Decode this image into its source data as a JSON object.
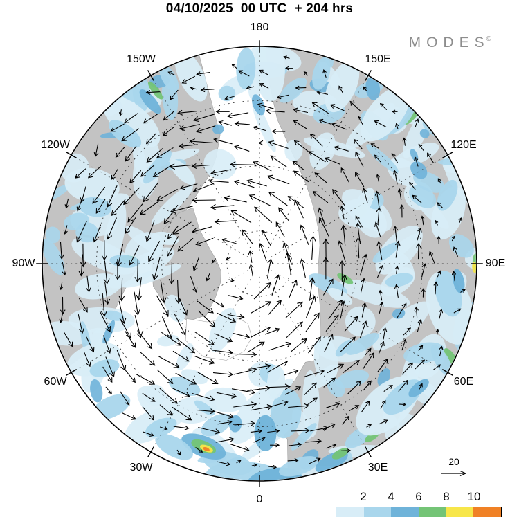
{
  "header": {
    "title": "04/10/2025  00 UTC  + 204 hrs",
    "brand": "MODES",
    "brand_mark": "©"
  },
  "map": {
    "longitude_labels": [
      "180",
      "150E",
      "120E",
      "90E",
      "60E",
      "30E",
      "0",
      "30W",
      "60W",
      "90W",
      "120W",
      "150W"
    ],
    "land_color": "#c3c3c3",
    "ocean_color": "#ffffff",
    "graticule_color": "#222222",
    "arrow_color": "#000000"
  },
  "legend": {
    "reference_arrow_label": "20",
    "colorbar_ticks": [
      "2",
      "4",
      "6",
      "8",
      "10"
    ],
    "colorbar_colors": [
      "#d8edf7",
      "#a9d6ec",
      "#6fb3d9",
      "#74c476",
      "#f7e64a",
      "#f08125"
    ]
  },
  "chart_data": {
    "type": "heatmap",
    "title": "04/10/2025 00 UTC + 204 hrs",
    "source_logo": "MODES",
    "projection": "north polar stereographic; 0 longitude at bottom, 180 at top, east longitudes clockwise",
    "longitude_ring_labels": [
      "180",
      "150E",
      "120E",
      "90E",
      "60E",
      "30E",
      "0",
      "30W",
      "60W",
      "90W",
      "120W",
      "150W"
    ],
    "overlays": [
      "shaded scalar field (levels per colorbar)",
      "wind vector arrows",
      "gray land mask",
      "dashed graticule every 30 degrees longitude and at three latitude circles"
    ],
    "colorbar": {
      "ticks": [
        2,
        4,
        6,
        8,
        10
      ],
      "colors": [
        "#d8edf7",
        "#a9d6ec",
        "#6fb3d9",
        "#74c476",
        "#f7e64a",
        "#f08125"
      ],
      "position": "bottom-right, partially clipped at image edge"
    },
    "reference_vector": {
      "value": 20,
      "position": "above colorbar, right side"
    },
    "notable_features": [
      "large cyclonic (counterclockwise) vortex of long arrows centered left of the pole (~90W-120W sector)",
      "strongest shading maxima (green/yellow/orange) near the bottom outer rim around 30W-30E",
      "scattered light-blue shading over mid-latitude ring, mostly white near the pole"
    ]
  }
}
